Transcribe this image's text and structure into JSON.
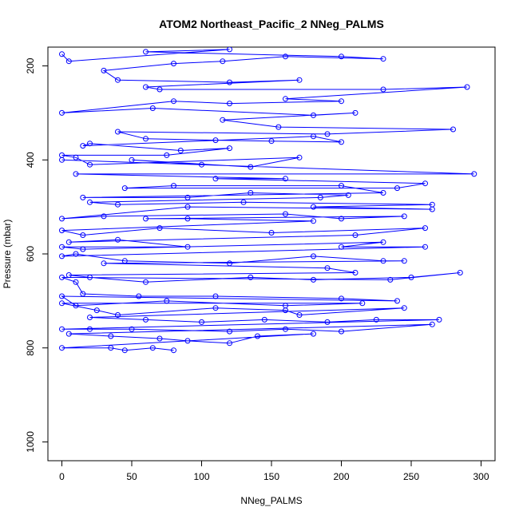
{
  "chart_data": {
    "type": "line",
    "title": "ATOM2 Northeast_Pacific_2 NNeg_PALMS",
    "xlabel": "NNeg_PALMS",
    "ylabel": "Pressure (mbar)",
    "xlim": [
      -10,
      310
    ],
    "ylim": [
      1040,
      160
    ],
    "y_reversed": true,
    "grid": false,
    "legend": "none",
    "x_ticks": [
      0,
      50,
      100,
      150,
      200,
      250,
      300
    ],
    "y_ticks": [
      200,
      400,
      600,
      800,
      1000
    ],
    "color": "#0000ff",
    "series": [
      {
        "values": [
          [
            0,
            175
          ],
          [
            5,
            190
          ],
          [
            120,
            165
          ],
          [
            60,
            170
          ],
          [
            200,
            180
          ],
          [
            230,
            185
          ],
          [
            160,
            180
          ],
          [
            115,
            190
          ],
          [
            80,
            195
          ],
          [
            30,
            210
          ],
          [
            40,
            230
          ],
          [
            120,
            235
          ],
          [
            170,
            230
          ],
          [
            60,
            245
          ],
          [
            70,
            250
          ],
          [
            230,
            250
          ],
          [
            290,
            245
          ],
          [
            160,
            270
          ],
          [
            200,
            275
          ],
          [
            120,
            280
          ],
          [
            80,
            275
          ],
          [
            0,
            300
          ],
          [
            65,
            290
          ],
          [
            180,
            305
          ],
          [
            210,
            300
          ],
          [
            115,
            315
          ],
          [
            155,
            330
          ],
          [
            280,
            335
          ],
          [
            190,
            345
          ],
          [
            40,
            340
          ],
          [
            60,
            355
          ],
          [
            110,
            358
          ],
          [
            150,
            360
          ],
          [
            200,
            362
          ],
          [
            180,
            350
          ],
          [
            15,
            370
          ],
          [
            20,
            365
          ],
          [
            85,
            380
          ],
          [
            120,
            375
          ],
          [
            75,
            390
          ],
          [
            0,
            390
          ],
          [
            10,
            395
          ],
          [
            20,
            410
          ],
          [
            170,
            395
          ],
          [
            135,
            415
          ],
          [
            50,
            400
          ],
          [
            100,
            410
          ],
          [
            0,
            400
          ],
          [
            295,
            430
          ],
          [
            10,
            430
          ],
          [
            160,
            440
          ],
          [
            110,
            440
          ],
          [
            260,
            450
          ],
          [
            240,
            460
          ],
          [
            45,
            460
          ],
          [
            80,
            455
          ],
          [
            200,
            455
          ],
          [
            230,
            470
          ],
          [
            15,
            480
          ],
          [
            90,
            480
          ],
          [
            135,
            470
          ],
          [
            205,
            475
          ],
          [
            185,
            480
          ],
          [
            20,
            490
          ],
          [
            40,
            495
          ],
          [
            130,
            490
          ],
          [
            265,
            495
          ],
          [
            180,
            500
          ],
          [
            265,
            505
          ],
          [
            90,
            500
          ],
          [
            0,
            525
          ],
          [
            30,
            520
          ],
          [
            160,
            515
          ],
          [
            200,
            525
          ],
          [
            245,
            520
          ],
          [
            60,
            525
          ],
          [
            90,
            525
          ],
          [
            180,
            530
          ],
          [
            0,
            550
          ],
          [
            15,
            560
          ],
          [
            70,
            545
          ],
          [
            150,
            555
          ],
          [
            260,
            545
          ],
          [
            210,
            560
          ],
          [
            5,
            575
          ],
          [
            40,
            570
          ],
          [
            90,
            585
          ],
          [
            0,
            585
          ],
          [
            15,
            590
          ],
          [
            230,
            575
          ],
          [
            200,
            585
          ],
          [
            260,
            585
          ],
          [
            0,
            605
          ],
          [
            10,
            600
          ],
          [
            45,
            615
          ],
          [
            120,
            620
          ],
          [
            180,
            605
          ],
          [
            230,
            615
          ],
          [
            245,
            615
          ],
          [
            30,
            620
          ],
          [
            190,
            630
          ],
          [
            210,
            640
          ],
          [
            5,
            645
          ],
          [
            20,
            650
          ],
          [
            60,
            660
          ],
          [
            135,
            650
          ],
          [
            180,
            655
          ],
          [
            250,
            650
          ],
          [
            285,
            640
          ],
          [
            235,
            655
          ],
          [
            0,
            650
          ],
          [
            10,
            660
          ],
          [
            15,
            685
          ],
          [
            55,
            690
          ],
          [
            110,
            690
          ],
          [
            200,
            695
          ],
          [
            240,
            700
          ],
          [
            0,
            690
          ],
          [
            10,
            710
          ],
          [
            75,
            700
          ],
          [
            160,
            710
          ],
          [
            215,
            705
          ],
          [
            0,
            705
          ],
          [
            25,
            720
          ],
          [
            40,
            730
          ],
          [
            110,
            715
          ],
          [
            160,
            720
          ],
          [
            170,
            730
          ],
          [
            245,
            715
          ],
          [
            20,
            735
          ],
          [
            60,
            740
          ],
          [
            100,
            745
          ],
          [
            145,
            740
          ],
          [
            190,
            745
          ],
          [
            225,
            740
          ],
          [
            270,
            740
          ],
          [
            0,
            760
          ],
          [
            20,
            760
          ],
          [
            50,
            760
          ],
          [
            120,
            765
          ],
          [
            160,
            760
          ],
          [
            200,
            765
          ],
          [
            265,
            750
          ],
          [
            5,
            770
          ],
          [
            35,
            775
          ],
          [
            70,
            780
          ],
          [
            90,
            785
          ],
          [
            120,
            790
          ],
          [
            140,
            775
          ],
          [
            180,
            770
          ],
          [
            0,
            800
          ],
          [
            35,
            800
          ],
          [
            45,
            805
          ],
          [
            65,
            800
          ],
          [
            80,
            805
          ]
        ]
      }
    ]
  }
}
